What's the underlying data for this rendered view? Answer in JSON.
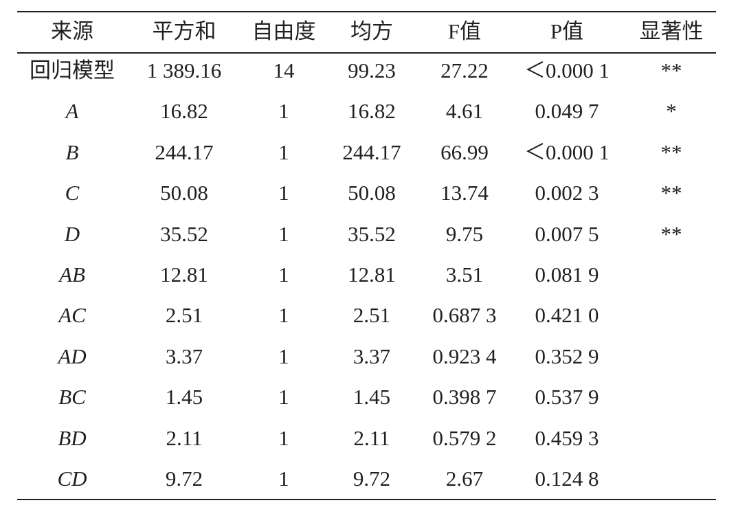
{
  "table": {
    "header": [
      "来源",
      "平方和",
      "自由度",
      "均方",
      "F值",
      "P值",
      "显著性"
    ],
    "rows": [
      [
        "回归模型",
        "1 389.16",
        "14",
        "99.23",
        "27.22",
        "＜0.000 1",
        "**"
      ],
      [
        "A",
        "16.82",
        "1",
        "16.82",
        "4.61",
        "0.049 7",
        "*"
      ],
      [
        "B",
        "244.17",
        "1",
        "244.17",
        "66.99",
        "＜0.000 1",
        "**"
      ],
      [
        "C",
        "50.08",
        "1",
        "50.08",
        "13.74",
        "0.002 3",
        "**"
      ],
      [
        "D",
        "35.52",
        "1",
        "35.52",
        "9.75",
        "0.007 5",
        "**"
      ],
      [
        "AB",
        "12.81",
        "1",
        "12.81",
        "3.51",
        "0.081 9"
      ],
      [
        "AC",
        "2.51",
        "1",
        "2.51",
        "0.687 3",
        "0.421 0"
      ],
      [
        "AD",
        "3.37",
        "1",
        "3.37",
        "0.923 4",
        "0.352 9"
      ],
      [
        "BC",
        "1.45",
        "1",
        "1.45",
        "0.398 7",
        "0.537 9"
      ],
      [
        "BD",
        "2.11",
        "1",
        "2.11",
        "0.579 2",
        "0.459 3"
      ],
      [
        "CD",
        "9.72",
        "1",
        "9.72",
        "2.67",
        "0.124 8"
      ]
    ]
  }
}
